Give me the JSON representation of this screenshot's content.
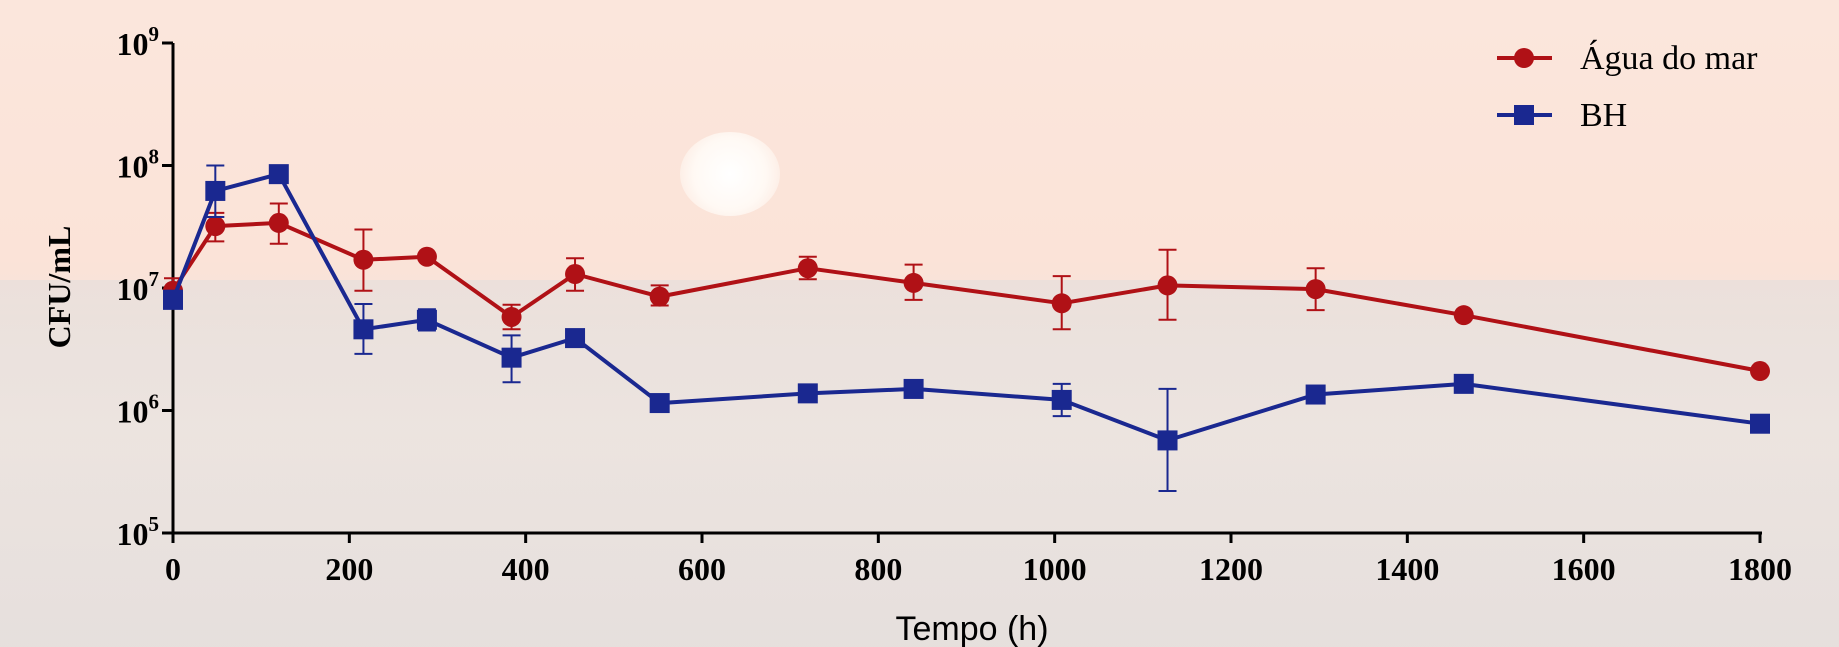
{
  "chart_data": {
    "type": "line",
    "xlabel": "Tempo (h)",
    "ylabel": "CFU/mL",
    "xlim": [
      0,
      1800
    ],
    "x_ticks": [
      0,
      200,
      400,
      600,
      800,
      1000,
      1200,
      1400,
      1600,
      1800
    ],
    "yscale": "log",
    "ylim": [
      100000,
      1000000000
    ],
    "y_tick_exponents": [
      5,
      6,
      7,
      8,
      9
    ],
    "legend_position": "top-right",
    "series": [
      {
        "name": "Água do mar",
        "color": "#b01116",
        "marker": "circle",
        "x": [
          0,
          48,
          120,
          216,
          288,
          384,
          456,
          552,
          720,
          840,
          1008,
          1128,
          1296,
          1464,
          1800
        ],
        "y": [
          9500000,
          32000000,
          34000000,
          17000000,
          18000000,
          5800000,
          13000000,
          8500000,
          14500000,
          11000000,
          7500000,
          10500000,
          9800000,
          6000000,
          2100000
        ],
        "err_low": [
          7800000,
          24000000,
          23000000,
          9500000,
          17000000,
          4600000,
          9500000,
          7200000,
          11800000,
          8000000,
          4600000,
          5500000,
          6600000,
          5700000,
          2000000
        ],
        "err_high": [
          12000000,
          41000000,
          49000000,
          30000000,
          19000000,
          7300000,
          17500000,
          10500000,
          18000000,
          15500000,
          12500000,
          20500000,
          14500000,
          6300000,
          2200000
        ]
      },
      {
        "name": "BH",
        "color": "#1a2890",
        "marker": "square",
        "x": [
          0,
          48,
          120,
          216,
          288,
          384,
          456,
          552,
          720,
          840,
          1008,
          1128,
          1296,
          1464,
          1800
        ],
        "y": [
          8000000,
          62000000,
          85000000,
          4600000,
          5500000,
          2700000,
          3900000,
          1150000,
          1380000,
          1500000,
          1220000,
          570000,
          1350000,
          1650000,
          780000
        ],
        "err_low": [
          7000000,
          38000000,
          80000000,
          2900000,
          4500000,
          1700000,
          3600000,
          1050000,
          1250000,
          1400000,
          900000,
          220000,
          1250000,
          1550000,
          720000
        ],
        "err_high": [
          9500000,
          100000000,
          90000000,
          7400000,
          6700000,
          4100000,
          4200000,
          1250000,
          1500000,
          1600000,
          1650000,
          1500000,
          1450000,
          1750000,
          840000
        ]
      }
    ]
  }
}
